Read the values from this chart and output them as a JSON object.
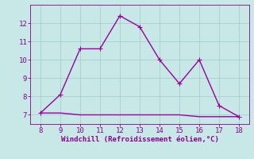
{
  "x": [
    8,
    9,
    10,
    11,
    12,
    13,
    14,
    15,
    16,
    17,
    18
  ],
  "y_upper": [
    7.1,
    8.1,
    10.6,
    10.6,
    12.4,
    11.8,
    10.0,
    8.7,
    10.0,
    7.5,
    6.9
  ],
  "y_lower": [
    7.1,
    7.1,
    7.0,
    7.0,
    7.0,
    7.0,
    7.0,
    7.0,
    6.9,
    6.9,
    6.9
  ],
  "line_color": "#990099",
  "background_color": "#c8e8e8",
  "grid_color": "#aacece",
  "xlabel": "Windchill (Refroidissement éolien,°C)",
  "xlim": [
    7.5,
    18.5
  ],
  "ylim": [
    6.5,
    13.0
  ],
  "xticks": [
    8,
    9,
    10,
    11,
    12,
    13,
    14,
    15,
    16,
    17,
    18
  ],
  "yticks": [
    7,
    8,
    9,
    10,
    11,
    12
  ],
  "tick_color": "#880088",
  "tick_fontsize": 6.5,
  "xlabel_fontsize": 6.5,
  "marker_size": 2.5,
  "line_width": 1.0
}
